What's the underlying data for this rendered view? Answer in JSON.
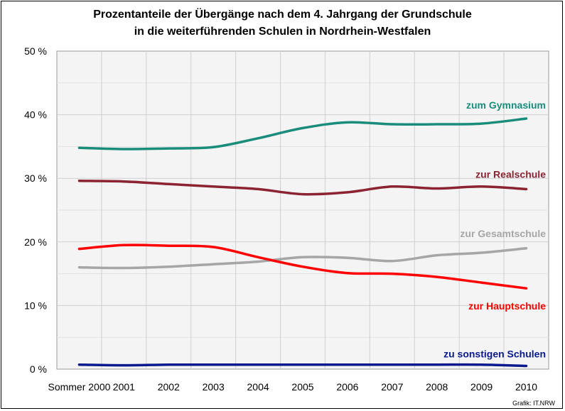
{
  "chart_data": {
    "type": "line",
    "title": "Prozentanteile der Übergänge nach dem 4. Jahrgang der Grundschule",
    "subtitle": "in die weiterführenden Schulen in Nordrhein-Westfalen",
    "categories": [
      "Sommer 2000",
      "2001",
      "2002",
      "2003",
      "2004",
      "2005",
      "2006",
      "2007",
      "2008",
      "2009",
      "2010"
    ],
    "yticks": [
      "0 %",
      "10 %",
      "20 %",
      "30 %",
      "40 %",
      "50 %"
    ],
    "ylim": [
      0,
      50
    ],
    "grid": true,
    "series": [
      {
        "name": "zum Gymnasium",
        "color": "#1a8c7a",
        "values": [
          34.8,
          34.6,
          34.7,
          34.9,
          36.3,
          37.9,
          38.8,
          38.5,
          38.5,
          38.6,
          39.4
        ]
      },
      {
        "name": "zur Realschule",
        "color": "#8b2332",
        "values": [
          29.6,
          29.5,
          29.1,
          28.7,
          28.3,
          27.5,
          27.8,
          28.7,
          28.4,
          28.7,
          28.3
        ]
      },
      {
        "name": "zur Gesamtschule",
        "color": "#a6a6a6",
        "values": [
          16.0,
          15.9,
          16.1,
          16.5,
          16.9,
          17.6,
          17.5,
          17.0,
          17.9,
          18.3,
          19.0
        ]
      },
      {
        "name": "zur Hauptschule",
        "color": "#ff0000",
        "values": [
          18.9,
          19.5,
          19.4,
          19.2,
          17.6,
          16.1,
          15.1,
          15.0,
          14.5,
          13.6,
          12.7
        ]
      },
      {
        "name": "zu sonstigen Schulen",
        "color": "#0a1a8c",
        "values": [
          0.7,
          0.6,
          0.7,
          0.7,
          0.7,
          0.7,
          0.7,
          0.7,
          0.7,
          0.7,
          0.5
        ]
      }
    ]
  },
  "credit": "Grafik: IT.NRW"
}
